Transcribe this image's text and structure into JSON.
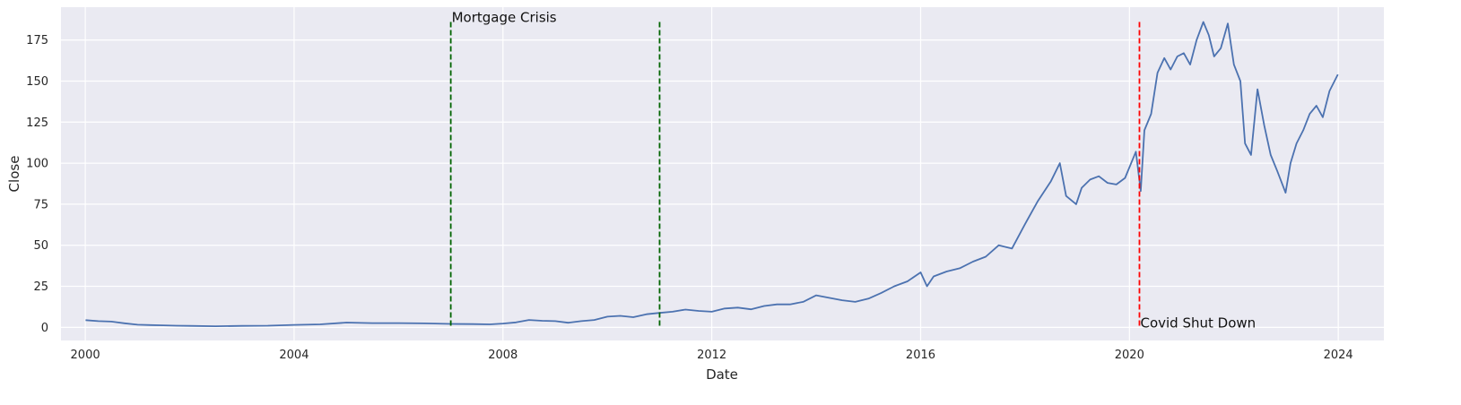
{
  "chart_data": {
    "type": "line",
    "title": "",
    "xlabel": "Date",
    "ylabel": "Close",
    "xlim": [
      "1999-07-15",
      "2024-11-15"
    ],
    "ylim": [
      -8,
      195
    ],
    "x_ticks": [
      "2000",
      "2004",
      "2008",
      "2012",
      "2016",
      "2020",
      "2024"
    ],
    "y_ticks": [
      0,
      25,
      50,
      75,
      100,
      125,
      150,
      175
    ],
    "grid": true,
    "legend": "none",
    "colors": {
      "background": "#eaeaf2",
      "grid": "#ffffff",
      "series": "#4c72b0",
      "mortgage_lines": "#006400",
      "covid_line": "#ff0000"
    },
    "series": [
      {
        "x": [
          "2000-01-03",
          "2000-04-01",
          "2000-07-01",
          "2000-10-01",
          "2001-01-01",
          "2001-04-01",
          "2001-07-01",
          "2001-10-01",
          "2002-01-01",
          "2002-07-01",
          "2003-01-01",
          "2003-07-01",
          "2004-01-01",
          "2004-07-01",
          "2005-01-01",
          "2005-07-01",
          "2006-01-01",
          "2006-07-01",
          "2007-01-01",
          "2007-06-01",
          "2007-10-01",
          "2008-01-01",
          "2008-04-01",
          "2008-07-01",
          "2008-10-01",
          "2009-01-01",
          "2009-04-01",
          "2009-07-01",
          "2009-10-01",
          "2010-01-01",
          "2010-04-01",
          "2010-07-01",
          "2010-10-01",
          "2011-01-01",
          "2011-04-01",
          "2011-07-01",
          "2011-10-01",
          "2012-01-01",
          "2012-04-01",
          "2012-07-01",
          "2012-10-01",
          "2013-01-01",
          "2013-04-01",
          "2013-07-01",
          "2013-10-01",
          "2014-01-01",
          "2014-04-01",
          "2014-07-01",
          "2014-10-01",
          "2015-01-01",
          "2015-04-01",
          "2015-07-01",
          "2015-10-01",
          "2016-01-01",
          "2016-02-15",
          "2016-04-01",
          "2016-07-01",
          "2016-10-01",
          "2017-01-01",
          "2017-04-01",
          "2017-07-01",
          "2017-10-01",
          "2018-01-01",
          "2018-04-01",
          "2018-07-01",
          "2018-09-01",
          "2018-10-15",
          "2018-12-24",
          "2019-02-01",
          "2019-04-01",
          "2019-06-01",
          "2019-08-01",
          "2019-10-01",
          "2019-12-01",
          "2020-02-15",
          "2020-03-20",
          "2020-04-15",
          "2020-06-01",
          "2020-07-15",
          "2020-09-01",
          "2020-10-15",
          "2020-12-01",
          "2021-01-15",
          "2021-03-01",
          "2021-04-15",
          "2021-06-01",
          "2021-07-09",
          "2021-08-15",
          "2021-10-01",
          "2021-11-19",
          "2022-01-01",
          "2022-02-15",
          "2022-03-20",
          "2022-05-01",
          "2022-06-15",
          "2022-08-01",
          "2022-09-15",
          "2022-11-01",
          "2022-12-28",
          "2023-02-01",
          "2023-03-15",
          "2023-05-01",
          "2023-06-15",
          "2023-08-01",
          "2023-09-15",
          "2023-11-01",
          "2023-12-29"
        ],
        "values": [
          4.4,
          3.8,
          3.5,
          2.5,
          1.6,
          1.4,
          1.2,
          1.0,
          0.9,
          0.7,
          0.9,
          1.0,
          1.5,
          1.8,
          2.9,
          2.6,
          2.6,
          2.4,
          2.1,
          2.0,
          1.8,
          2.3,
          3.0,
          4.5,
          4.0,
          3.8,
          2.8,
          3.8,
          4.5,
          6.5,
          7.0,
          6.2,
          8.0,
          8.8,
          9.5,
          10.8,
          10.0,
          9.5,
          11.5,
          12.0,
          11.0,
          13.0,
          14.0,
          14.0,
          15.5,
          19.5,
          18.0,
          16.5,
          15.5,
          17.5,
          21.0,
          25.0,
          28.0,
          33.5,
          25.0,
          31.0,
          34.0,
          36.0,
          40.0,
          43.0,
          50.0,
          48.0,
          63.0,
          77.0,
          89.0,
          100.0,
          80.0,
          75.0,
          85.0,
          90.0,
          92.0,
          88.0,
          87.0,
          91.0,
          107.0,
          83.0,
          120.0,
          130.0,
          155.0,
          164.0,
          157.0,
          165.0,
          167.0,
          160.0,
          175.0,
          186.0,
          178.0,
          165.0,
          170.0,
          185.0,
          160.0,
          150.0,
          112.0,
          105.0,
          145.0,
          123.0,
          105.0,
          95.0,
          82.0,
          100.0,
          112.0,
          120.0,
          130.0,
          135.0,
          128.0,
          144.0,
          154.0
        ]
      }
    ],
    "annotations": [
      {
        "type": "vline",
        "x": "2007-01-01",
        "color": "#006400",
        "style": "dashed"
      },
      {
        "type": "vline",
        "x": "2011-01-01",
        "color": "#006400",
        "style": "dashed"
      },
      {
        "type": "vline",
        "x": "2020-03-11",
        "color": "#ff0000",
        "style": "dashed"
      },
      {
        "type": "text",
        "x": "2007-01-01",
        "y": 186,
        "text": "Mortgage Crisis"
      },
      {
        "type": "text",
        "x": "2020-03-11",
        "y": 0,
        "text": "Covid Shut Down"
      }
    ]
  }
}
